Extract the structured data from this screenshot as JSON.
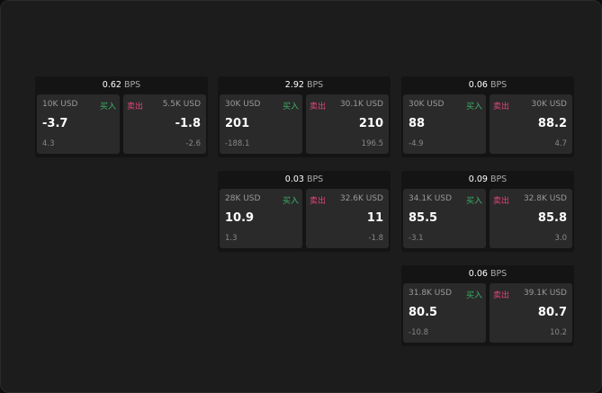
{
  "colors": {
    "buy": "#3bb36a",
    "sell": "#e0457b",
    "background": "#1c1c1c"
  },
  "buy_label": "买入",
  "sell_label": "卖出",
  "unit": "BPS",
  "cards": [
    {
      "spread": "0.62",
      "buy": {
        "amount": "10K USD",
        "price": "-3.7",
        "change": "4.3"
      },
      "sell": {
        "amount": "5.5K USD",
        "price": "-1.8",
        "change": "-2.6"
      }
    },
    {
      "spread": "2.92",
      "buy": {
        "amount": "30K USD",
        "price": "201",
        "change": "-188.1"
      },
      "sell": {
        "amount": "30.1K USD",
        "price": "210",
        "change": "196.5"
      }
    },
    {
      "spread": "0.06",
      "buy": {
        "amount": "30K USD",
        "price": "88",
        "change": "-4.9"
      },
      "sell": {
        "amount": "30K USD",
        "price": "88.2",
        "change": "4.7"
      }
    },
    {
      "spread": "0.03",
      "buy": {
        "amount": "28K USD",
        "price": "10.9",
        "change": "1.3"
      },
      "sell": {
        "amount": "32.6K USD",
        "price": "11",
        "change": "-1.8"
      }
    },
    {
      "spread": "0.09",
      "buy": {
        "amount": "34.1K USD",
        "price": "85.5",
        "change": "-3.1"
      },
      "sell": {
        "amount": "32.8K USD",
        "price": "85.8",
        "change": "3.0"
      }
    },
    {
      "spread": "0.06",
      "buy": {
        "amount": "31.8K USD",
        "price": "80.5",
        "change": "-10.8"
      },
      "sell": {
        "amount": "39.1K USD",
        "price": "80.7",
        "change": "10.2"
      }
    }
  ]
}
